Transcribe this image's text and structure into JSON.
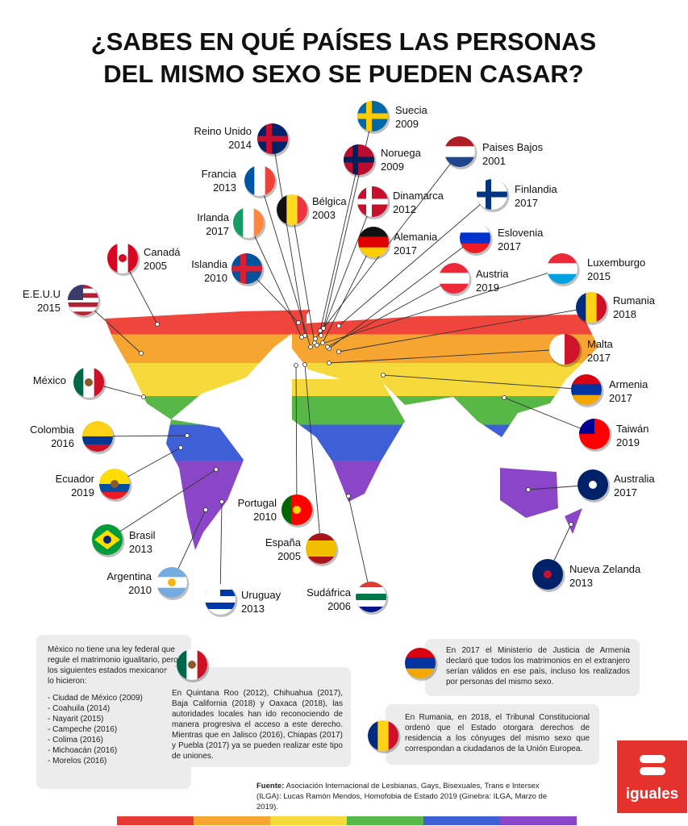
{
  "title": [
    "¿SABES EN QUÉ PAÍSES LAS PERSONAS",
    "DEL MISMO SEXO SE PUEDEN CASAR?"
  ],
  "countries": [
    {
      "name": "Suecia",
      "year": 2009
    },
    {
      "name": "Reino Unido",
      "year": 2014
    },
    {
      "name": "Noruega",
      "year": 2009
    },
    {
      "name": "Paises Bajos",
      "year": 2001
    },
    {
      "name": "Francia",
      "year": 2013
    },
    {
      "name": "Bélgica",
      "year": 2003
    },
    {
      "name": "Dinamarca",
      "year": 2012
    },
    {
      "name": "Finlandia",
      "year": 2017
    },
    {
      "name": "Irlanda",
      "year": 2017
    },
    {
      "name": "Alemania",
      "year": 2017
    },
    {
      "name": "Eslovenia",
      "year": 2017
    },
    {
      "name": "Canadá",
      "year": 2005
    },
    {
      "name": "Islandia",
      "year": 2010
    },
    {
      "name": "Luxemburgo",
      "year": 2015
    },
    {
      "name": "Austria",
      "year": 2019
    },
    {
      "name": "E.E.U.U",
      "year": 2015
    },
    {
      "name": "Rumania",
      "year": 2018
    },
    {
      "name": "Malta",
      "year": 2017
    },
    {
      "name": "México"
    },
    {
      "name": "Armenia",
      "year": 2017
    },
    {
      "name": "Colombia",
      "year": 2016
    },
    {
      "name": "Taiwán",
      "year": 2019
    },
    {
      "name": "Ecuador",
      "year": 2019
    },
    {
      "name": "Australia",
      "year": 2017
    },
    {
      "name": "Portugal",
      "year": 2010
    },
    {
      "name": "Brasil",
      "year": 2013
    },
    {
      "name": "España",
      "year": 2005
    },
    {
      "name": "Nueva Zelanda",
      "year": 2013
    },
    {
      "name": "Argentina",
      "year": 2010
    },
    {
      "name": "Uruguay",
      "year": 2013
    },
    {
      "name": "Sudáfrica",
      "year": 2006
    }
  ],
  "mexico_note": {
    "intro": "México no tiene una ley federal que regule el matrimonio igualitario, pero los siguientes estados mexicanos sí lo hicieron:",
    "states": [
      "Ciudad de México (2009)",
      "Coahuila (2014)",
      "Nayarit (2015)",
      "Campeche (2016)",
      "Colima (2016)",
      "Michoacán (2016)",
      "Morelos (2016)"
    ],
    "detail": "En Quintana Roo (2012), Chihuahua (2017), Baja California (2018) y Oaxaca (2018), las autoridades locales han ido reconociendo de manera progresiva el acceso a este derecho. Mientras que en Jalisco (2016), Chiapas (2017) y Puebla (2017) ya se pueden realizar este tipo de uniones."
  },
  "armenia_note": "En 2017 el Ministerio de Justicia de Armenia declaró que todos los matrimonios en el extranjero serían válidos en ese país, incluso los realizados por personas del mismo sexo.",
  "romania_note": "En Rumania, en 2018, el Tribunal Constitucional ordenó que el Estado otorgara derechos de residencia a los cónyuges del mismo sexo que correspondan a ciudadanos de la Unión Europea.",
  "source": {
    "label": "Fuente:",
    "text": "Asociación Internacional de Lesbianas, Gays, Bisexuales, Trans e Intersex (ILGA): Lucas Ramón Mendos, Homofobia de Estado 2019 (Ginebra: ILGA, Marzo de 2019)."
  },
  "logo": "iguales"
}
